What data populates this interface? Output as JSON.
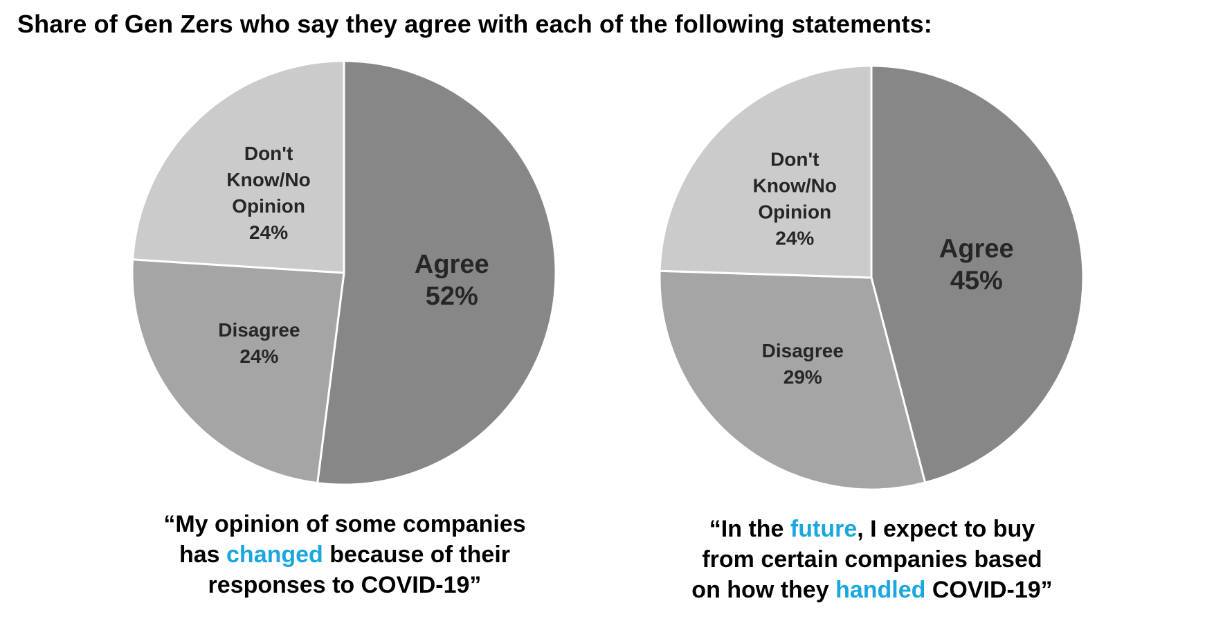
{
  "title": "Share of Gen Zers who say they agree with each of the following statements:",
  "colors": {
    "agree": "#878787",
    "disagree": "#a5a5a5",
    "dont_know": "#cbcbcb",
    "highlight": "#1aa7e0"
  },
  "chart_data": [
    {
      "type": "pie",
      "slices": [
        {
          "label": "Agree",
          "value": 52,
          "display": "52%"
        },
        {
          "label": "Disagree",
          "value": 24,
          "display": "24%"
        },
        {
          "label": "Don't Know/No Opinion",
          "value": 24,
          "display": "24%"
        }
      ],
      "caption": {
        "line1": "“My opinion of some companies",
        "line2_pre": "has ",
        "line2_hl": "changed",
        "line2_post": " because of their",
        "line3": "responses to COVID-19”"
      }
    },
    {
      "type": "pie",
      "slices": [
        {
          "label": "Agree",
          "value": 45,
          "display": "45%"
        },
        {
          "label": "Disagree",
          "value": 29,
          "display": "29%"
        },
        {
          "label": "Don't Know/No Opinion",
          "value": 24,
          "display": "24%"
        }
      ],
      "caption": {
        "line1_pre": "“In the ",
        "line1_hl": "future",
        "line1_post": ", I expect to buy",
        "line2": "from certain companies based",
        "line3_pre": "on how they ",
        "line3_hl": "handled",
        "line3_post": " COVID-19”"
      }
    }
  ]
}
